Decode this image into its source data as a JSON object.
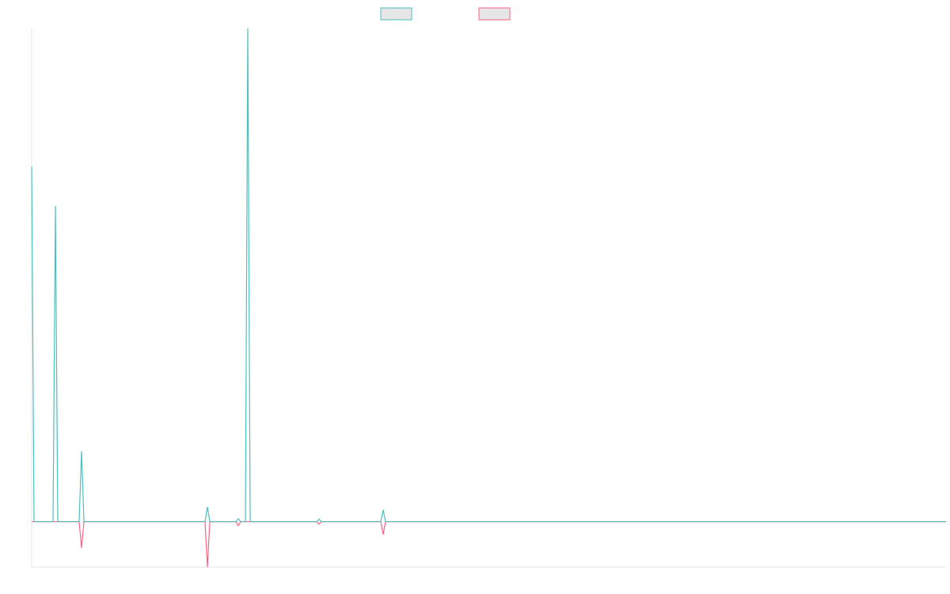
{
  "chart_data": {
    "type": "line",
    "x": [
      0,
      1,
      9,
      10,
      11,
      20,
      21,
      22,
      73,
      74,
      75,
      86,
      87,
      88,
      90,
      91,
      92,
      120,
      121,
      122,
      147,
      148,
      149,
      385
    ],
    "xlim": [
      0,
      385
    ],
    "ylim": [
      -9.2,
      100
    ],
    "series": [
      {
        "color": "#4bc0c0",
        "values": [
          72,
          0,
          0,
          64,
          0,
          0,
          14.3,
          0,
          0,
          3,
          0,
          0,
          0.6,
          0,
          0,
          100,
          0,
          0,
          0.5,
          0,
          0,
          2.4,
          0,
          0
        ]
      },
      {
        "color": "#ff6384",
        "values": [
          0,
          0,
          0,
          0,
          0,
          0,
          -5.3,
          0,
          0,
          -9.2,
          0,
          0,
          -0.8,
          0,
          0,
          0,
          0,
          0,
          -0.5,
          0,
          0,
          -2.6,
          0,
          0
        ]
      }
    ]
  }
}
